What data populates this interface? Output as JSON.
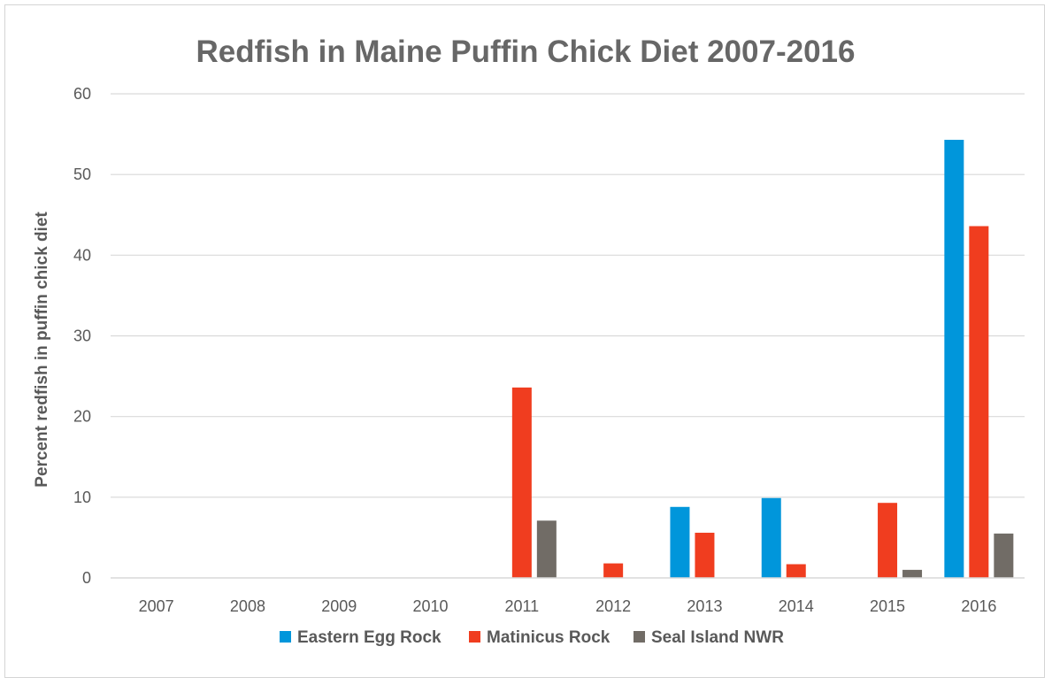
{
  "chart_data": {
    "type": "bar",
    "title": "Redfish in Maine Puffin Chick Diet 2007-2016",
    "xlabel": "",
    "ylabel": "Percent redfish in puffin chick diet",
    "ylim": [
      0,
      60
    ],
    "yticks": [
      "0",
      "10",
      "20",
      "30",
      "40",
      "50",
      "60"
    ],
    "grid": true,
    "legend_position": "bottom",
    "categories": [
      "2007",
      "2008",
      "2009",
      "2010",
      "2011",
      "2012",
      "2013",
      "2014",
      "2015",
      "2016"
    ],
    "series": [
      {
        "name": "Eastern Egg Rock",
        "color": "#0096db",
        "values": [
          0,
          0,
          0,
          0,
          0,
          0,
          8.8,
          9.9,
          0,
          54.3
        ]
      },
      {
        "name": "Matinicus Rock",
        "color": "#f03d1f",
        "values": [
          0,
          0,
          0,
          0,
          23.6,
          1.8,
          5.6,
          1.7,
          9.3,
          43.6
        ]
      },
      {
        "name": "Seal Island NWR",
        "color": "#716c66",
        "values": [
          0,
          0,
          0,
          0,
          7.1,
          0,
          0,
          0,
          1.0,
          5.5
        ]
      }
    ]
  }
}
